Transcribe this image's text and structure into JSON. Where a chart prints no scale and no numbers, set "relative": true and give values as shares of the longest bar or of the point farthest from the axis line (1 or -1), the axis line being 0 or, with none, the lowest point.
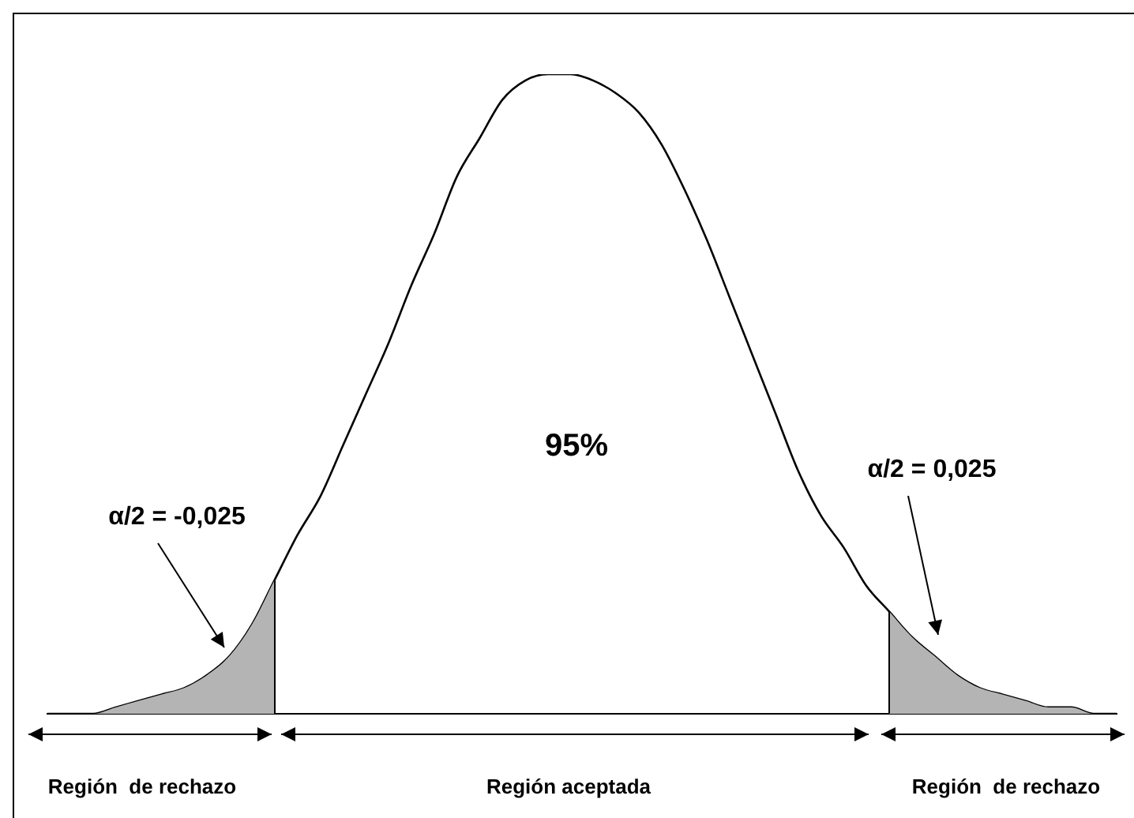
{
  "chart_data": {
    "type": "line",
    "relative": true,
    "grid": false,
    "legend": false,
    "marker": "none",
    "categories": [
      null,
      null,
      null,
      null,
      null,
      null,
      null,
      null,
      null,
      null,
      null,
      null,
      null,
      null,
      null,
      null,
      null,
      null,
      null,
      null,
      null,
      null,
      null,
      null,
      null,
      null,
      null,
      null,
      null,
      null,
      null,
      null,
      null,
      null,
      null,
      null,
      null,
      null,
      null,
      null,
      null,
      null,
      null,
      null,
      null,
      null,
      null,
      null
    ],
    "series": [
      {
        "type": "area",
        "color": "#b4b4b4",
        "values": [
          0,
          0,
          0,
          0.01,
          0.02,
          0.03,
          0.04,
          0.06,
          0.09,
          0.14,
          0.21,
          null,
          null,
          null,
          null,
          null,
          null,
          null,
          null,
          null,
          null,
          null,
          null,
          null,
          null,
          null,
          null,
          null,
          null,
          null,
          null,
          null,
          null,
          null,
          null,
          null,
          null,
          0.16,
          0.12,
          0.09,
          0.06,
          0.04,
          0.03,
          0.02,
          0.01,
          0.01,
          0,
          0
        ]
      },
      {
        "color": "#000000",
        "values": [
          0,
          0,
          0,
          0.01,
          0.02,
          0.03,
          0.04,
          0.06,
          0.09,
          0.14,
          0.21,
          0.28,
          0.34,
          0.42,
          0.5,
          0.58,
          0.67,
          0.75,
          0.84,
          0.9,
          0.96,
          0.99,
          1,
          1,
          0.99,
          0.97,
          0.94,
          0.89,
          0.82,
          0.74,
          0.65,
          0.56,
          0.47,
          0.38,
          0.31,
          0.26,
          0.2,
          0.16,
          0.12,
          0.09,
          0.06,
          0.04,
          0.03,
          0.02,
          0.01,
          0.01,
          0,
          0
        ]
      }
    ],
    "annotations": [
      "95%",
      "α/2 = -0,025",
      "α/2 = 0,025",
      "Región  de rechazo",
      "Región aceptada",
      "Región  de rechazo"
    ]
  }
}
